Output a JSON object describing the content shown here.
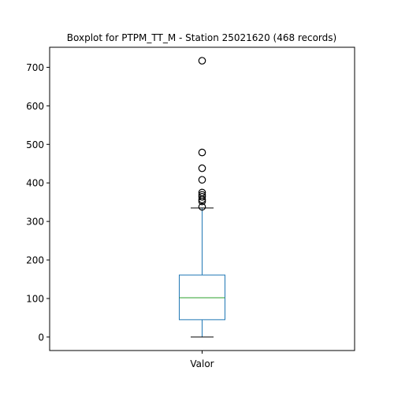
{
  "chart_data": {
    "type": "box",
    "title": "Boxplot for PTPM_TT_M - Station 25021620 (468 records)",
    "categories": [
      "Valor"
    ],
    "xlabel": "",
    "ylabel": "",
    "ylim": [
      -35,
      752
    ],
    "yticks": [
      0,
      100,
      200,
      300,
      400,
      500,
      600,
      700
    ],
    "ytick_labels": [
      "0",
      "100",
      "200",
      "300",
      "400",
      "500",
      "600",
      "700"
    ],
    "grid": false,
    "box": {
      "whisker_low": 0,
      "q1": 45,
      "median": 102,
      "q3": 161,
      "whisker_high": 335
    },
    "outliers": [
      338,
      352,
      357,
      364,
      369,
      375,
      408,
      438,
      479,
      717
    ],
    "colors": {
      "box": "#1f77b4",
      "median": "#2ca02c",
      "caps": "#000000",
      "outlier": "#000000"
    }
  }
}
